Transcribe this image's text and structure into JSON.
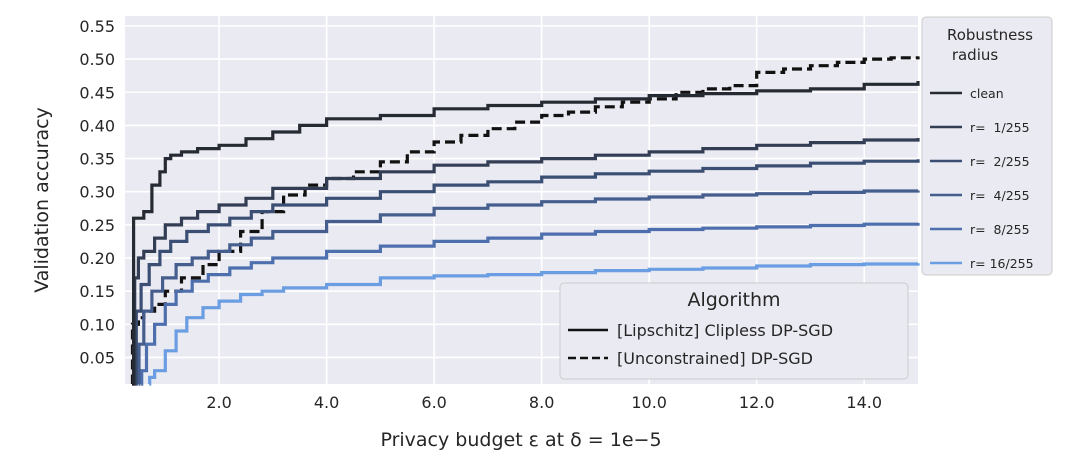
{
  "chart_data": {
    "type": "line",
    "xlabel": "Privacy budget ε at δ = 1e−5",
    "ylabel": "Validation accuracy",
    "xlim": [
      0.25,
      15.0
    ],
    "ylim": [
      0.01,
      0.565
    ],
    "xticks": [
      2.0,
      4.0,
      6.0,
      8.0,
      10.0,
      12.0,
      14.0
    ],
    "xtick_labels": [
      "2.0",
      "4.0",
      "6.0",
      "8.0",
      "10.0",
      "12.0",
      "14.0"
    ],
    "yticks": [
      0.05,
      0.1,
      0.15,
      0.2,
      0.25,
      0.3,
      0.35,
      0.4,
      0.45,
      0.5,
      0.55
    ],
    "ytick_labels": [
      "0.05",
      "0.10",
      "0.15",
      "0.20",
      "0.25",
      "0.30",
      "0.35",
      "0.40",
      "0.45",
      "0.50",
      "0.55"
    ],
    "grid": true,
    "plot_background": "#eaeaf2",
    "algorithm_legend": {
      "title": "Algorithm",
      "placement": "lower-right",
      "entries": [
        {
          "label": "[Lipschitz] Clipless DP-SGD",
          "style": "solid"
        },
        {
          "label": "[Unconstrained] DP-SGD",
          "style": "dashed"
        }
      ]
    },
    "radius_legend": {
      "title_line1": "Robustness",
      "title_line2": "radius",
      "placement": "outside-right"
    },
    "series": [
      {
        "name": "clean",
        "algorithm": "Lipschitz",
        "color": "#262a33",
        "style": "solid",
        "x": [
          0.4,
          0.41,
          0.5,
          0.6,
          0.75,
          0.9,
          1.0,
          1.1,
          1.3,
          1.6,
          2.0,
          2.5,
          3.0,
          3.5,
          4.0,
          5.0,
          6.0,
          7.0,
          8.0,
          9.0,
          10.0,
          11.0,
          12.0,
          13.0,
          14.0,
          15.0
        ],
        "y": [
          0.01,
          0.26,
          0.26,
          0.27,
          0.31,
          0.33,
          0.35,
          0.355,
          0.36,
          0.365,
          0.37,
          0.38,
          0.39,
          0.4,
          0.41,
          0.415,
          0.425,
          0.43,
          0.435,
          0.44,
          0.445,
          0.448,
          0.452,
          0.455,
          0.462,
          0.467
        ]
      },
      {
        "name": "r=  1/255",
        "algorithm": "Lipschitz",
        "color": "#333e55",
        "style": "solid",
        "x": [
          0.42,
          0.43,
          0.5,
          0.6,
          0.8,
          1.0,
          1.3,
          1.6,
          2.0,
          2.5,
          3.0,
          4.0,
          5.0,
          6.0,
          7.0,
          8.0,
          9.0,
          10.0,
          11.0,
          12.0,
          13.0,
          14.0,
          15.0
        ],
        "y": [
          0.01,
          0.17,
          0.2,
          0.21,
          0.23,
          0.25,
          0.26,
          0.27,
          0.28,
          0.29,
          0.305,
          0.32,
          0.33,
          0.34,
          0.345,
          0.35,
          0.355,
          0.36,
          0.365,
          0.37,
          0.374,
          0.378,
          0.381
        ]
      },
      {
        "name": "r=  2/255",
        "algorithm": "Lipschitz",
        "color": "#3b4e73",
        "style": "solid",
        "x": [
          0.45,
          0.46,
          0.55,
          0.7,
          0.9,
          1.1,
          1.4,
          1.8,
          2.2,
          2.6,
          3.0,
          4.0,
          5.0,
          6.0,
          7.0,
          8.0,
          9.0,
          10.0,
          11.0,
          12.0,
          13.0,
          14.0,
          15.0
        ],
        "y": [
          0.01,
          0.12,
          0.16,
          0.19,
          0.21,
          0.225,
          0.24,
          0.25,
          0.26,
          0.27,
          0.28,
          0.29,
          0.3,
          0.31,
          0.315,
          0.322,
          0.327,
          0.331,
          0.335,
          0.339,
          0.343,
          0.346,
          0.349
        ]
      },
      {
        "name": "r=  4/255",
        "algorithm": "Lipschitz",
        "color": "#455e8e",
        "style": "solid",
        "x": [
          0.5,
          0.51,
          0.6,
          0.75,
          0.95,
          1.2,
          1.5,
          1.8,
          2.2,
          2.6,
          3.0,
          4.0,
          5.0,
          6.0,
          7.0,
          8.0,
          9.0,
          10.0,
          11.0,
          12.0,
          13.0,
          14.0,
          15.0
        ],
        "y": [
          0.01,
          0.07,
          0.12,
          0.15,
          0.17,
          0.19,
          0.2,
          0.21,
          0.22,
          0.23,
          0.24,
          0.255,
          0.265,
          0.275,
          0.28,
          0.285,
          0.289,
          0.292,
          0.295,
          0.297,
          0.299,
          0.301,
          0.302
        ]
      },
      {
        "name": "r=  8/255",
        "algorithm": "Lipschitz",
        "color": "#4e6fae",
        "style": "solid",
        "x": [
          0.55,
          0.56,
          0.65,
          0.8,
          1.0,
          1.2,
          1.5,
          1.8,
          2.2,
          2.6,
          3.0,
          4.0,
          5.0,
          6.0,
          7.0,
          8.0,
          9.0,
          10.0,
          11.0,
          12.0,
          13.0,
          14.0,
          15.0
        ],
        "y": [
          0.01,
          0.03,
          0.07,
          0.1,
          0.13,
          0.15,
          0.165,
          0.175,
          0.185,
          0.193,
          0.2,
          0.21,
          0.218,
          0.225,
          0.23,
          0.236,
          0.24,
          0.243,
          0.245,
          0.247,
          0.249,
          0.251,
          0.253
        ]
      },
      {
        "name": "r= 16/255",
        "algorithm": "Lipschitz",
        "color": "#6a9de2",
        "style": "solid",
        "x": [
          0.7,
          0.71,
          0.8,
          1.0,
          1.2,
          1.4,
          1.7,
          2.0,
          2.4,
          2.8,
          3.2,
          4.0,
          5.0,
          6.0,
          7.0,
          8.0,
          9.0,
          10.0,
          11.0,
          12.0,
          13.0,
          14.0,
          15.0
        ],
        "y": [
          0.01,
          0.02,
          0.03,
          0.06,
          0.09,
          0.11,
          0.125,
          0.135,
          0.145,
          0.15,
          0.155,
          0.16,
          0.17,
          0.173,
          0.175,
          0.178,
          0.181,
          0.183,
          0.185,
          0.188,
          0.19,
          0.191,
          0.192
        ]
      },
      {
        "name": "DP-SGD",
        "algorithm": "Unconstrained",
        "color": "#111111",
        "style": "dashed",
        "x": [
          0.38,
          0.39,
          0.5,
          0.6,
          0.8,
          1.0,
          1.3,
          1.7,
          2.0,
          2.4,
          2.8,
          3.2,
          3.6,
          4.0,
          4.5,
          5.0,
          5.5,
          6.0,
          6.5,
          7.0,
          7.5,
          8.0,
          8.5,
          9.0,
          9.5,
          10.0,
          10.5,
          11.0,
          11.5,
          12.0,
          12.5,
          13.0,
          13.5,
          14.0,
          14.5,
          15.0
        ],
        "y": [
          0.01,
          0.1,
          0.11,
          0.12,
          0.13,
          0.15,
          0.17,
          0.19,
          0.21,
          0.24,
          0.27,
          0.295,
          0.31,
          0.32,
          0.33,
          0.345,
          0.36,
          0.375,
          0.385,
          0.395,
          0.405,
          0.415,
          0.42,
          0.428,
          0.435,
          0.44,
          0.45,
          0.455,
          0.46,
          0.48,
          0.485,
          0.49,
          0.495,
          0.5,
          0.502,
          0.504
        ]
      }
    ]
  }
}
